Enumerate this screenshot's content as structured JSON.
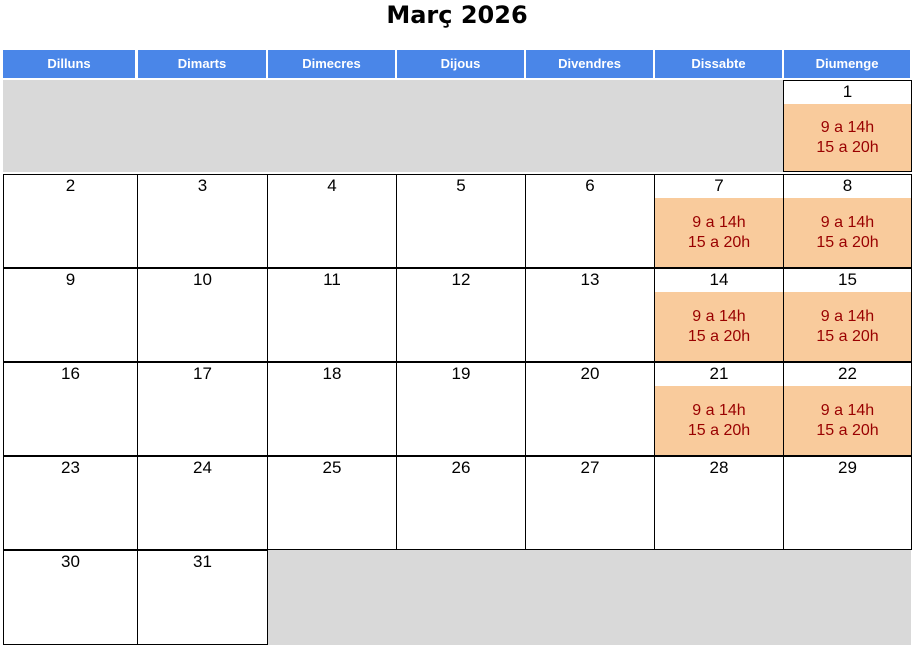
{
  "title": "Març 2026",
  "colors": {
    "header": "#4a86e8",
    "open": "#f9cb9c",
    "open_text": "#990000",
    "empty": "#d9d9d9"
  },
  "weekdays": [
    "Dilluns",
    "Dimarts",
    "Dimecres",
    "Dijous",
    "Divendres",
    "Dissabte",
    "Diumenge"
  ],
  "weeks": [
    [
      null,
      null,
      null,
      null,
      null,
      null,
      {
        "day": "1",
        "hours": [
          "9 a 14h",
          "15 a 20h"
        ]
      }
    ],
    [
      {
        "day": "2"
      },
      {
        "day": "3"
      },
      {
        "day": "4"
      },
      {
        "day": "5"
      },
      {
        "day": "6"
      },
      {
        "day": "7",
        "hours": [
          "9 a 14h",
          "15 a 20h"
        ]
      },
      {
        "day": "8",
        "hours": [
          "9 a 14h",
          "15 a 20h"
        ]
      }
    ],
    [
      {
        "day": "9"
      },
      {
        "day": "10"
      },
      {
        "day": "11"
      },
      {
        "day": "12"
      },
      {
        "day": "13"
      },
      {
        "day": "14",
        "hours": [
          "9 a 14h",
          "15 a 20h"
        ]
      },
      {
        "day": "15",
        "hours": [
          "9 a 14h",
          "15 a 20h"
        ]
      }
    ],
    [
      {
        "day": "16"
      },
      {
        "day": "17"
      },
      {
        "day": "18"
      },
      {
        "day": "19"
      },
      {
        "day": "20"
      },
      {
        "day": "21",
        "hours": [
          "9 a 14h",
          "15 a 20h"
        ]
      },
      {
        "day": "22",
        "hours": [
          "9 a 14h",
          "15 a 20h"
        ]
      }
    ],
    [
      {
        "day": "23"
      },
      {
        "day": "24"
      },
      {
        "day": "25"
      },
      {
        "day": "26"
      },
      {
        "day": "27"
      },
      {
        "day": "28"
      },
      {
        "day": "29"
      }
    ],
    [
      {
        "day": "30"
      },
      {
        "day": "31"
      },
      null,
      null,
      null,
      null,
      null
    ]
  ]
}
